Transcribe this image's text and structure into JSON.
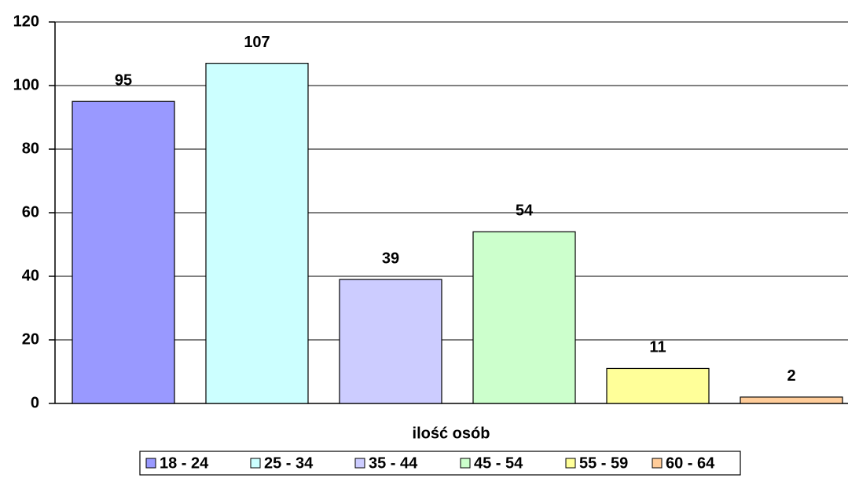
{
  "chart_data": {
    "type": "bar",
    "categories": [
      "ilość osób"
    ],
    "series": [
      {
        "name": "18 - 24",
        "color": "#9999ff",
        "values": [
          95
        ]
      },
      {
        "name": "25 - 34",
        "color": "#ccffff",
        "values": [
          107
        ]
      },
      {
        "name": "35 - 44",
        "color": "#ccccff",
        "values": [
          39
        ]
      },
      {
        "name": "45 - 54",
        "color": "#ccffcc",
        "values": [
          54
        ]
      },
      {
        "name": "55 - 59",
        "color": "#ffff99",
        "values": [
          11
        ]
      },
      {
        "name": "60 - 64",
        "color": "#ffcc99",
        "values": [
          2
        ]
      }
    ],
    "ylim": [
      0,
      120
    ],
    "yticks": [
      0,
      20,
      40,
      60,
      80,
      100,
      120
    ],
    "grid": true,
    "legend": "bottom"
  }
}
